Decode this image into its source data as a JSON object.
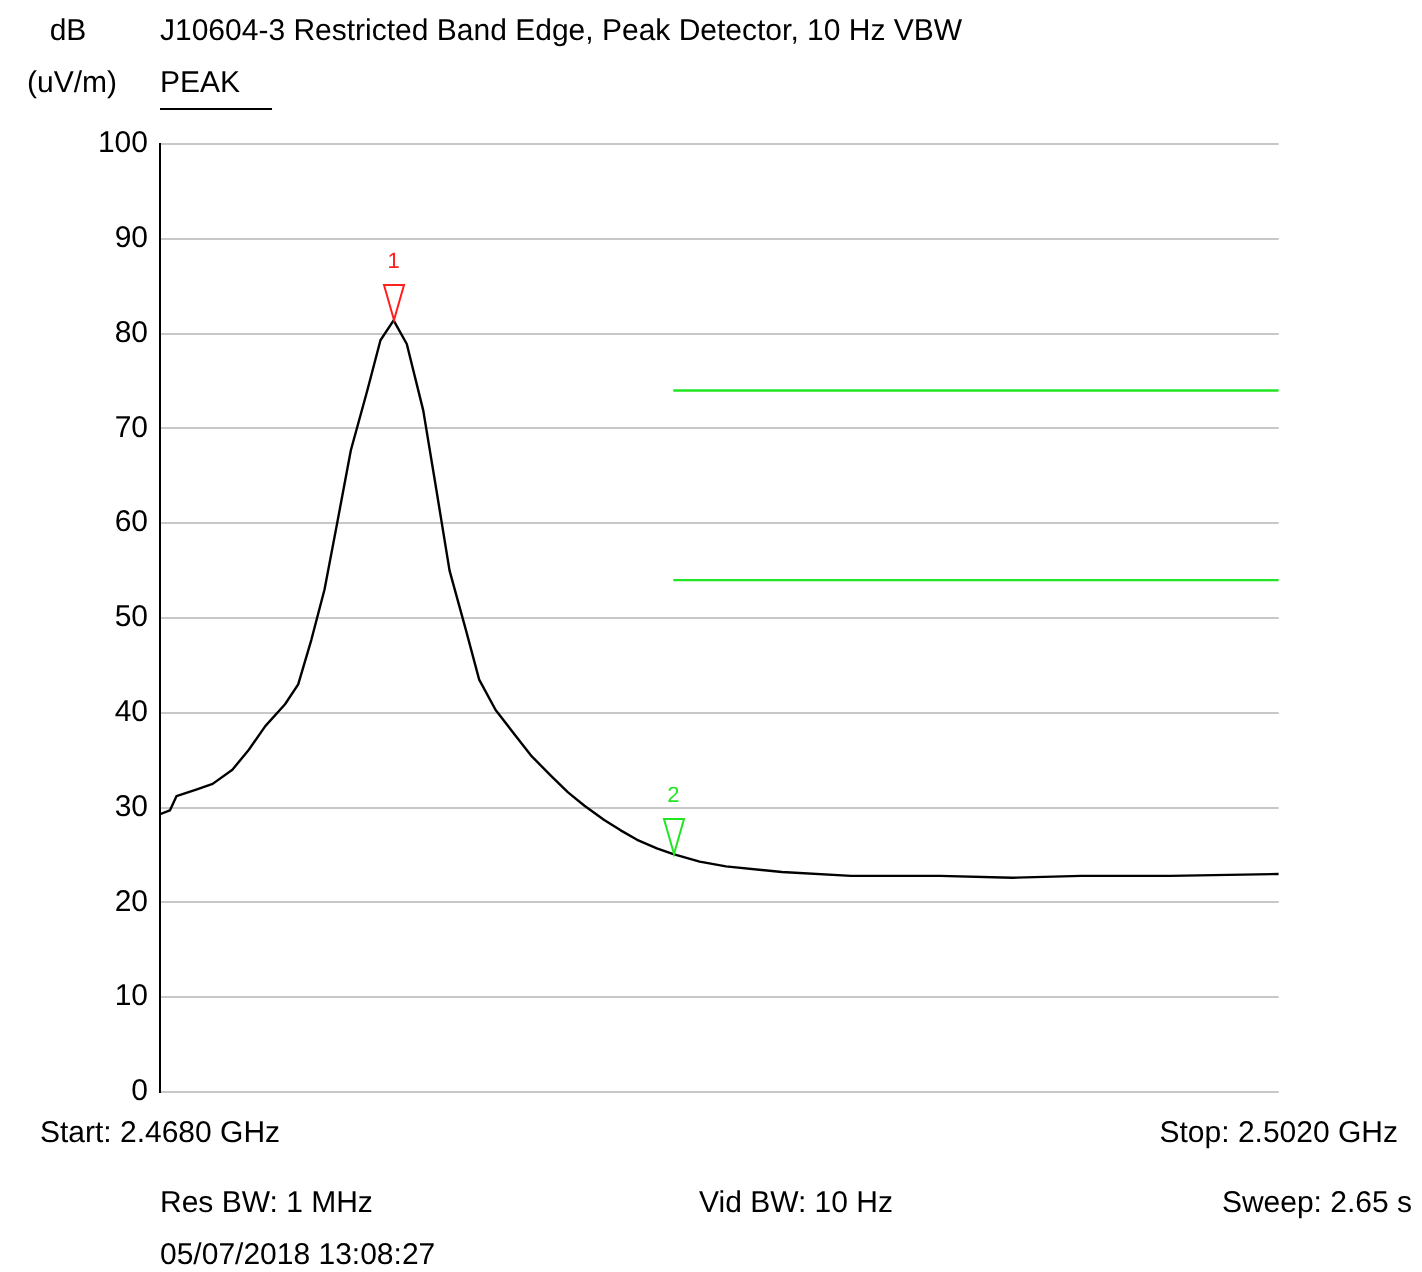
{
  "chart_data": {
    "type": "line",
    "title": "J10604-3 Restricted Band Edge, Peak Detector, 10 Hz VBW",
    "subtitle": "PEAK",
    "ylabel": "dB\n(uV/m)",
    "xlim": [
      2.468,
      2.502
    ],
    "xticks": [
      {
        "value": 2.468,
        "label": "Start: 2.4680 GHz"
      },
      {
        "value": 2.502,
        "label": "Stop: 2.5020 GHz"
      }
    ],
    "ylim": [
      0,
      100
    ],
    "yticks": [
      0,
      10,
      20,
      30,
      40,
      50,
      60,
      70,
      80,
      90,
      100
    ],
    "grid": "y",
    "marker": "none",
    "line_style": "solid",
    "series": [
      {
        "color": "#000000",
        "x": [
          2.468,
          2.4683,
          2.4685,
          2.4691,
          2.4696,
          2.4702,
          2.4707,
          2.4712,
          2.4718,
          2.4722,
          2.4726,
          2.473,
          2.4734,
          2.4738,
          2.4743,
          2.4747,
          2.4751,
          2.4755,
          2.476,
          2.4764,
          2.4768,
          2.4773,
          2.4777,
          2.4782,
          2.4788,
          2.4793,
          2.4799,
          2.4804,
          2.4809,
          2.4815,
          2.482,
          2.4825,
          2.4831,
          2.4836,
          2.4844,
          2.4852,
          2.4869,
          2.489,
          2.4917,
          2.4939,
          2.496,
          2.4987,
          2.502
        ],
        "values": [
          29.3,
          29.7,
          31.2,
          31.9,
          32.5,
          34,
          36.1,
          38.6,
          40.9,
          43,
          47.7,
          53,
          60.3,
          67.7,
          74,
          79.3,
          81.4,
          78.9,
          71.9,
          63.5,
          55,
          48.7,
          43.5,
          40.3,
          37.6,
          35.4,
          33.3,
          31.6,
          30.2,
          28.7,
          27.6,
          26.6,
          25.7,
          25.1,
          24.3,
          23.8,
          23.2,
          22.8,
          22.8,
          22.6,
          22.8,
          22.8,
          23
        ]
      },
      {
        "color": "#22e622",
        "x": [
          2.4836,
          2.502
        ],
        "values": [
          74,
          74
        ]
      },
      {
        "color": "#22e622",
        "x": [
          2.4836,
          2.502
        ],
        "values": [
          54,
          54
        ]
      }
    ],
    "annotations": [
      {
        "text": "1",
        "x": 2.4751,
        "y": 81.4
      },
      {
        "text": "2",
        "x": 2.4836,
        "y": 25.1
      },
      "Res BW: 1 MHz",
      "Vid BW: 10 Hz",
      "Sweep: 2.65 s",
      "05/07/2018 13:08:27"
    ]
  }
}
